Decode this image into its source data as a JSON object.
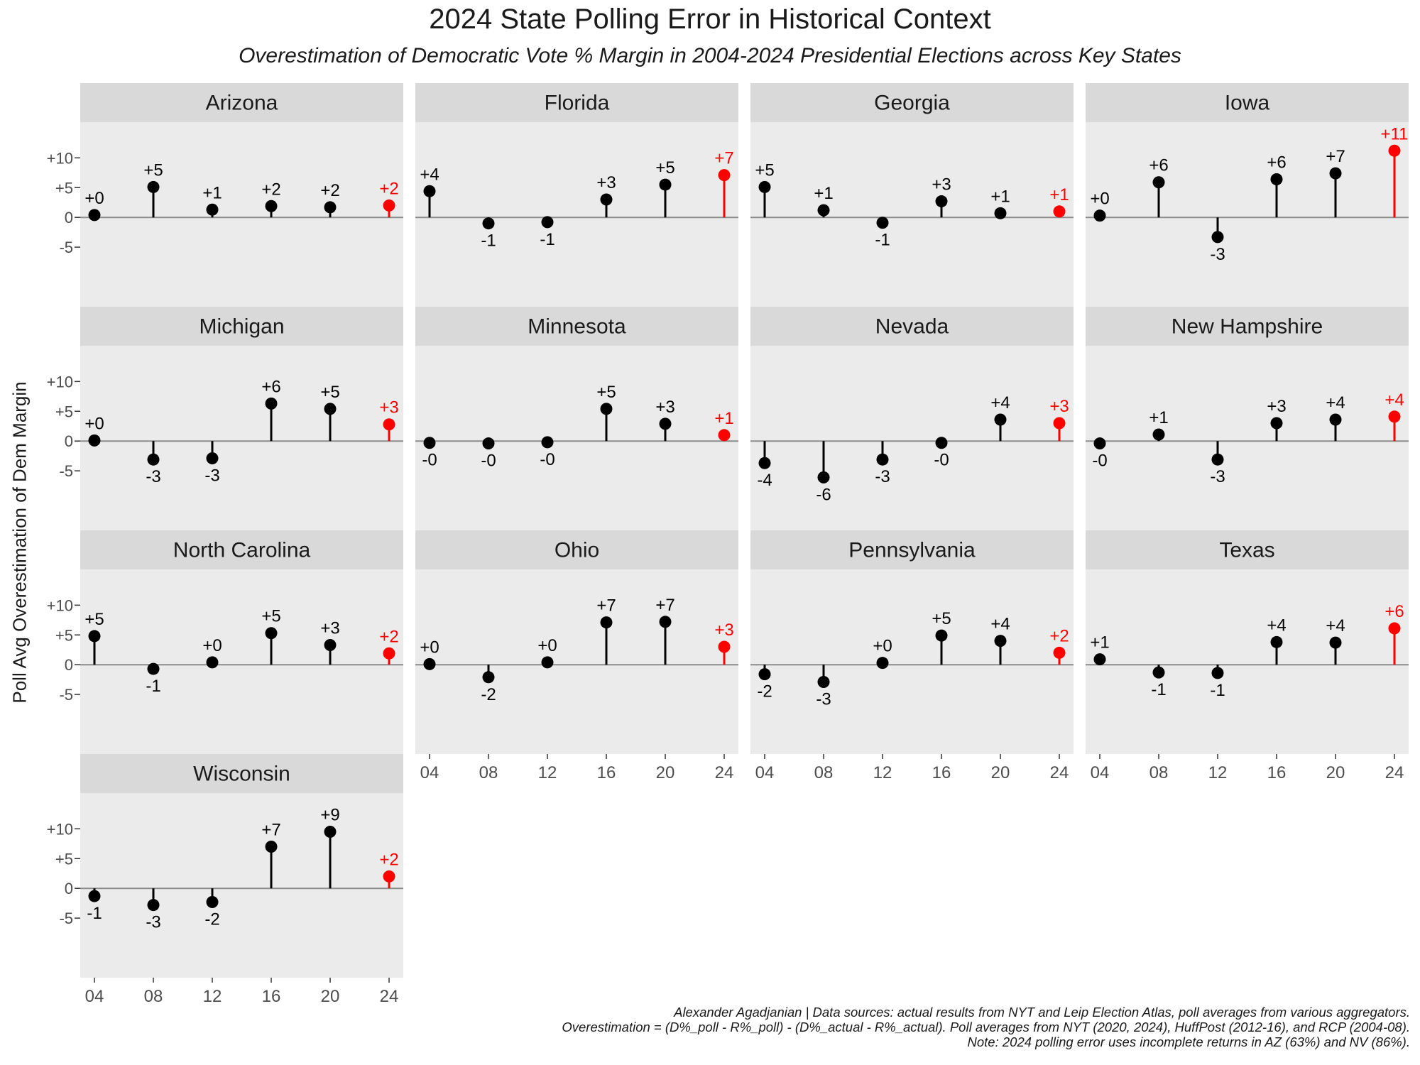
{
  "title": "2024 State Polling Error in Historical Context",
  "subtitle": "Overestimation of Democratic Vote % Margin in 2004-2024 Presidential Elections across Key States",
  "y_axis_label": "Poll Avg Overestimation of Dem Margin",
  "caption": [
    "Alexander Agadjanian | Data sources: actual results from NYT and Leip Election Atlas, poll averages from various aggregators.",
    "Overestimation = (D%_poll - R%_poll) - (D%_actual - R%_actual). Poll averages from NYT (2020, 2024), HuffPost (2012-16), and RCP (2004-08).",
    "Note: 2024 polling error uses incomplete returns in AZ (63%) and NV (86%)."
  ],
  "colors": {
    "historical": "#000000",
    "highlight_2024": "#ff0000",
    "panel_bg": "#ebebeb",
    "strip_bg": "#d9d9d9",
    "zero_line": "#8c8c8c"
  },
  "chart_data": {
    "type": "lollipop",
    "facet_by": "state",
    "x": [
      "04",
      "08",
      "12",
      "16",
      "20",
      "24"
    ],
    "y_ticks": [
      "+10",
      "+5",
      "0",
      "-5"
    ],
    "y_tick_values": [
      10,
      5,
      0,
      -5
    ],
    "ylim": [
      -15,
      16
    ],
    "highlight_x": "24",
    "grid": false,
    "panels": [
      {
        "state": "Arizona",
        "values": [
          0.4,
          5.1,
          1.3,
          1.9,
          1.7,
          2.0
        ],
        "labels": [
          "+0",
          "+5",
          "+1",
          "+2",
          "+2",
          "+2"
        ]
      },
      {
        "state": "Florida",
        "values": [
          4.4,
          -1.0,
          -0.8,
          3.0,
          5.5,
          7.1
        ],
        "labels": [
          "+4",
          "-1",
          "-1",
          "+3",
          "+5",
          "+7"
        ]
      },
      {
        "state": "Georgia",
        "values": [
          5.1,
          1.2,
          -0.9,
          2.7,
          0.7,
          1.0
        ],
        "labels": [
          "+5",
          "+1",
          "-1",
          "+3",
          "+1",
          "+1"
        ]
      },
      {
        "state": "Iowa",
        "values": [
          0.3,
          5.9,
          -3.3,
          6.4,
          7.4,
          11.2
        ],
        "labels": [
          "+0",
          "+6",
          "-3",
          "+6",
          "+7",
          "+11"
        ]
      },
      {
        "state": "Michigan",
        "values": [
          0.1,
          -3.1,
          -2.9,
          6.3,
          5.4,
          2.8
        ],
        "labels": [
          "+0",
          "-3",
          "-3",
          "+6",
          "+5",
          "+3"
        ]
      },
      {
        "state": "Minnesota",
        "values": [
          -0.3,
          -0.4,
          -0.2,
          5.4,
          2.9,
          1.0
        ],
        "labels": [
          "-0",
          "-0",
          "-0",
          "+5",
          "+3",
          "+1"
        ]
      },
      {
        "state": "Nevada",
        "values": [
          -3.7,
          -6.1,
          -3.1,
          -0.3,
          3.6,
          3.0
        ],
        "labels": [
          "-4",
          "-6",
          "-3",
          "-0",
          "+4",
          "+3"
        ]
      },
      {
        "state": "New Hampshire",
        "values": [
          -0.4,
          1.1,
          -3.1,
          3.0,
          3.6,
          4.1
        ],
        "labels": [
          "-0",
          "+1",
          "-3",
          "+3",
          "+4",
          "+4"
        ]
      },
      {
        "state": "North Carolina",
        "values": [
          4.8,
          -0.7,
          0.4,
          5.3,
          3.3,
          1.9
        ],
        "labels": [
          "+5",
          "-1",
          "+0",
          "+5",
          "+3",
          "+2"
        ]
      },
      {
        "state": "Ohio",
        "values": [
          0.1,
          -2.1,
          0.4,
          7.1,
          7.2,
          3.0
        ],
        "labels": [
          "+0",
          "-2",
          "+0",
          "+7",
          "+7",
          "+3"
        ]
      },
      {
        "state": "Pennsylvania",
        "values": [
          -1.6,
          -2.9,
          0.3,
          4.9,
          4.0,
          2.0
        ],
        "labels": [
          "-2",
          "-3",
          "+0",
          "+5",
          "+4",
          "+2"
        ]
      },
      {
        "state": "Texas",
        "values": [
          0.9,
          -1.3,
          -1.4,
          3.8,
          3.7,
          6.1
        ],
        "labels": [
          "+1",
          "-1",
          "-1",
          "+4",
          "+4",
          "+6"
        ]
      },
      {
        "state": "Wisconsin",
        "values": [
          -1.3,
          -2.8,
          -2.3,
          7.0,
          9.5,
          2.0
        ],
        "labels": [
          "-1",
          "-3",
          "-2",
          "+7",
          "+9",
          "+2"
        ]
      }
    ]
  }
}
